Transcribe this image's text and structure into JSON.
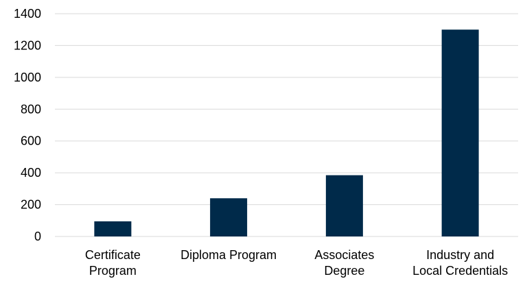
{
  "chart_data": {
    "type": "bar",
    "categories": [
      [
        "Certificate",
        "Program"
      ],
      [
        "Diploma Program"
      ],
      [
        "Associates",
        "Degree"
      ],
      [
        "Industry and",
        "Local Credentials"
      ]
    ],
    "values": [
      95,
      240,
      385,
      1300
    ],
    "ylim": [
      0,
      1400
    ],
    "yticks": [
      0,
      200,
      400,
      600,
      800,
      1000,
      1200,
      1400
    ],
    "grid": true,
    "legend": "none",
    "bar_color": "#002a4a"
  }
}
